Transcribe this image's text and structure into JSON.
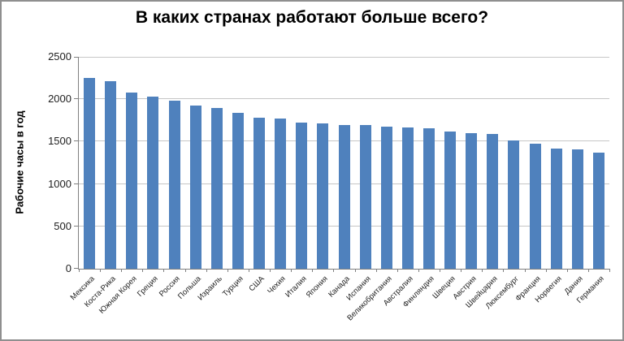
{
  "chart_data": {
    "type": "bar",
    "title": "В каких странах работают больше всего?",
    "ylabel": "Рабочие часы в год",
    "xlabel": "",
    "categories": [
      "Мексика",
      "Коста-Рика",
      "Южная Корея",
      "Греция",
      "Россия",
      "Польша",
      "Израиль",
      "Турция",
      "США",
      "Чехия",
      "Италия",
      "Япония",
      "Канада",
      "Испания",
      "Великобритания",
      "Австралия",
      "Финляндия",
      "Швеция",
      "Австрия",
      "Швейцария",
      "Люксембург",
      "Франция",
      "Норвегия",
      "Дания",
      "Германия"
    ],
    "values": [
      2255,
      2216,
      2083,
      2035,
      1978,
      1930,
      1892,
      1835,
      1780,
      1770,
      1725,
      1715,
      1700,
      1695,
      1675,
      1665,
      1655,
      1620,
      1600,
      1590,
      1512,
      1475,
      1415,
      1410,
      1370
    ],
    "ylim": [
      0,
      2500
    ],
    "yticks": [
      0,
      500,
      1000,
      1500,
      2000,
      2500
    ],
    "grid": true,
    "legend": "none",
    "bar_color": "#4F81BD",
    "gridline_color": "#c6c6c6",
    "axis_color": "#808080",
    "tick_label_color": "#1f1f1f",
    "title_color": "#000000"
  }
}
